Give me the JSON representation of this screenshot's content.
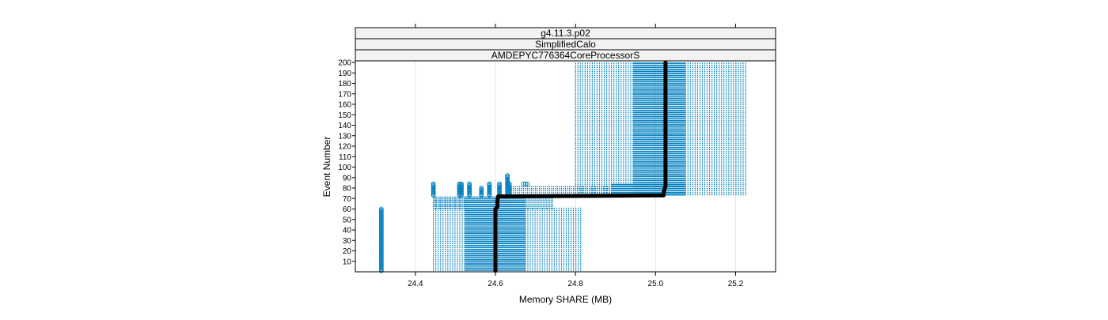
{
  "chart_data": {
    "type": "scatter",
    "strips": [
      "g4.11.3.p02",
      "SimplifiedCalo",
      "AMDEPYC776364CoreProcessorS"
    ],
    "xlabel": "Memory SHARE (MB)",
    "ylabel": "Event Number",
    "xlim": [
      24.25,
      25.3
    ],
    "ylim": [
      0,
      200
    ],
    "x_ticks": [
      24.4,
      24.6,
      24.8,
      25.0,
      25.2
    ],
    "x_tick_labels": [
      "24.4",
      "24.6",
      "24.8",
      "25.0",
      "25.2"
    ],
    "y_ticks": [
      10,
      20,
      30,
      40,
      50,
      60,
      70,
      80,
      90,
      100,
      110,
      120,
      130,
      140,
      150,
      160,
      170,
      180,
      190,
      200
    ],
    "y_tick_labels": [
      "10",
      "20",
      "30",
      "40",
      "50",
      "60",
      "70",
      "80",
      "90",
      "100",
      "110",
      "120",
      "130",
      "140",
      "150",
      "160",
      "170",
      "180",
      "190",
      "200"
    ],
    "grid": "vertical",
    "colors": {
      "points": "#0080c0",
      "median_line": "#000000",
      "strip_bg": "#f2f2f2"
    },
    "point_columns": [
      {
        "x": 24.315,
        "y0": 1,
        "y1": 60
      },
      {
        "x": 24.445,
        "y0": 73,
        "y1": 84
      },
      {
        "x": 24.51,
        "y0": 73,
        "y1": 84
      },
      {
        "x": 24.515,
        "y0": 73,
        "y1": 84
      },
      {
        "x": 24.535,
        "y0": 73,
        "y1": 84
      },
      {
        "x": 24.565,
        "y0": 73,
        "y1": 80
      },
      {
        "x": 24.585,
        "y0": 73,
        "y1": 84
      },
      {
        "x": 24.61,
        "y0": 73,
        "y1": 84
      },
      {
        "x": 24.63,
        "y0": 73,
        "y1": 92
      },
      {
        "x": 24.635,
        "y0": 73,
        "y1": 84
      },
      {
        "x": 24.67,
        "y0": 84,
        "y1": 84
      },
      {
        "x": 24.675,
        "y0": 84,
        "y1": 84
      },
      {
        "x": 24.68,
        "y0": 84,
        "y1": 84
      }
    ],
    "point_bands": [
      {
        "x0": 24.445,
        "x1": 24.525,
        "y0": 1,
        "y1": 72,
        "step": 0.006
      },
      {
        "x0": 24.445,
        "x1": 24.525,
        "y0": 60,
        "y1": 72,
        "step": 0.004
      },
      {
        "x0": 24.525,
        "x1": 24.675,
        "y0": 1,
        "y1": 72,
        "step": 0.0015
      },
      {
        "x0": 24.675,
        "x1": 24.815,
        "y0": 1,
        "y1": 62,
        "step": 0.006
      },
      {
        "x0": 24.675,
        "x1": 24.745,
        "y0": 60,
        "y1": 72,
        "step": 0.004
      },
      {
        "x0": 24.64,
        "x1": 24.89,
        "y0": 73,
        "y1": 82,
        "step": 0.005
      },
      {
        "x0": 24.89,
        "x1": 25.075,
        "y0": 73,
        "y1": 84,
        "step": 0.0015
      },
      {
        "x0": 24.8,
        "x1": 24.945,
        "y0": 73,
        "y1": 200,
        "step": 0.006
      },
      {
        "x0": 24.945,
        "x1": 25.075,
        "y0": 73,
        "y1": 200,
        "step": 0.0015
      },
      {
        "x0": 25.075,
        "x1": 25.23,
        "y0": 73,
        "y1": 200,
        "step": 0.006
      }
    ],
    "median_path": [
      {
        "x": 24.6,
        "y": 1
      },
      {
        "x": 24.6,
        "y": 60
      },
      {
        "x": 24.605,
        "y": 62
      },
      {
        "x": 24.605,
        "y": 68
      },
      {
        "x": 24.607,
        "y": 72
      },
      {
        "x": 25.02,
        "y": 73
      },
      {
        "x": 25.021,
        "y": 77
      },
      {
        "x": 25.025,
        "y": 82
      },
      {
        "x": 25.025,
        "y": 140
      },
      {
        "x": 25.025,
        "y": 200
      }
    ]
  }
}
